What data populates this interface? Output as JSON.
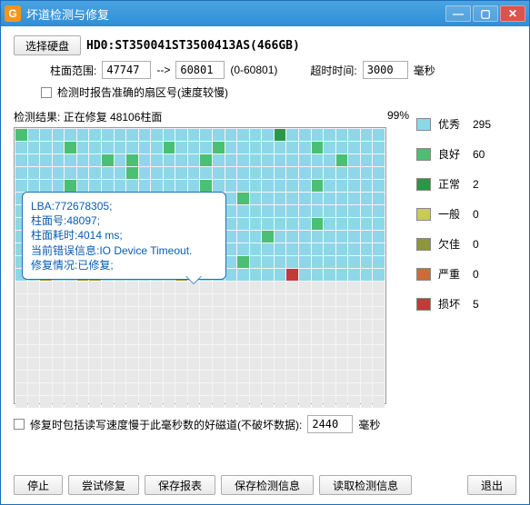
{
  "window": {
    "title": "坏道检测与修复"
  },
  "toolbar": {
    "select_disk": "选择硬盘",
    "disk_label": "HD0:ST350041ST3500413AS(466GB)"
  },
  "range": {
    "label": "柱面范围:",
    "from": "47747",
    "arrow": "-->",
    "to": "60801",
    "bounds": "(0-60801)",
    "timeout_label": "超时时间:",
    "timeout": "3000",
    "timeout_unit": "毫秒"
  },
  "opt_accurate": "检测时报告准确的扇区号(速度较慢)",
  "result": {
    "label": "检测结果:",
    "text": "正在修复 48106柱面",
    "pct": "99%"
  },
  "bubble": {
    "l1": "LBA:772678305;",
    "l2": "柱面号:48097;",
    "l3": "柱面耗时:4014 ms;",
    "l4": "当前错误信息:IO Device Timeout.",
    "l5": "修复情况:已修复;"
  },
  "legend": [
    {
      "name": "优秀",
      "color": "#8ed7e8",
      "count": "295"
    },
    {
      "name": "良好",
      "color": "#4bbf74",
      "count": "60"
    },
    {
      "name": "正常",
      "color": "#2b9648",
      "count": "2"
    },
    {
      "name": "一般",
      "color": "#c8cc54",
      "count": "0"
    },
    {
      "name": "欠佳",
      "color": "#8f9638",
      "count": "0"
    },
    {
      "name": "严重",
      "color": "#d06a3a",
      "count": "0"
    },
    {
      "name": "损坏",
      "color": "#c23a3a",
      "count": "5"
    }
  ],
  "repair_opt": {
    "label": "修复时包括读写速度慢于此毫秒数的好磁道(不破坏数据):",
    "value": "2440",
    "unit": "毫秒"
  },
  "buttons": {
    "stop": "停止",
    "tryrepair": "尝试修复",
    "savereport": "保存报表",
    "saveinfo": "保存检测信息",
    "readinfo": "读取检测信息",
    "exit": "退出"
  },
  "grid": {
    "cols": 30,
    "colors": {
      "E": "#8ed7e8",
      "G": "#4bbf74",
      "N": "#2b9648",
      "Y": "#c8cc54",
      "O": "#8f9638",
      "R": "#c23a3a",
      "X": "#e8e8e8"
    },
    "rows": [
      "GEEEEEEEEEEEEEEEEEEEENEEEEEEEE",
      "EEEEGEEEEEEEGEEEGEEEEEEEGEEEEE",
      "EEEEEEEGEGEEEEEGEEEEEEEEEEGEEE",
      "EEEEEEEEEGEEEEEEEEEEEEEEEEEEEE",
      "EEEEGEEEEEEEEEEGEEEEEEEEGEEEEE",
      "EEEEEEEEEEEEEEEEEEGEEEEEEEEEEE",
      "EEEGEEEEGEEEEEEEEEEEEEEEEEEEEE",
      "EEEEEEEEEEEEGEEEEEEEEEEEGEEEEE",
      "EEEEEEEEEEEEEEEEEEEEGEEEEEEEEE",
      "EEEEEEEEEEEGEEEEEEEEEEEEEEEEEE",
      "EEEEEEGEEEEEEEEEEEGEEEEEEEEEEE",
      "EEOEEOOEEEEEEOEEEEEEEEREEEEEEE",
      "XXXXXXXXXXXXXXXXXXXXXXXXXXXXXX",
      "XXXXXXXXXXXXXXXXXXXXXXXXXXXXXX",
      "XXXXXXXXXXXXXXXXXXXXXXXXXXXXXX",
      "XXXXXXXXXXXXXXXXXXXXXXXXXXXXXX",
      "XXXXXXXXXXXXXXXXXXXXXXXXXXXXXX",
      "XXXXXXXXXXXXXXXXXXXXXXXXXXXXXX",
      "XXXXXXXXXXXXXXXXXXXXXXXXXXXXXX",
      "XXXXXXXXXXXXXXXXXXXXXXXXXXXXXX",
      "XXXXXXXXXXXXXXXXXXXXXXXXXXXXXX",
      "XXXXXXXXXXXXXXXXXXXXXXXXXXXXXX"
    ]
  }
}
